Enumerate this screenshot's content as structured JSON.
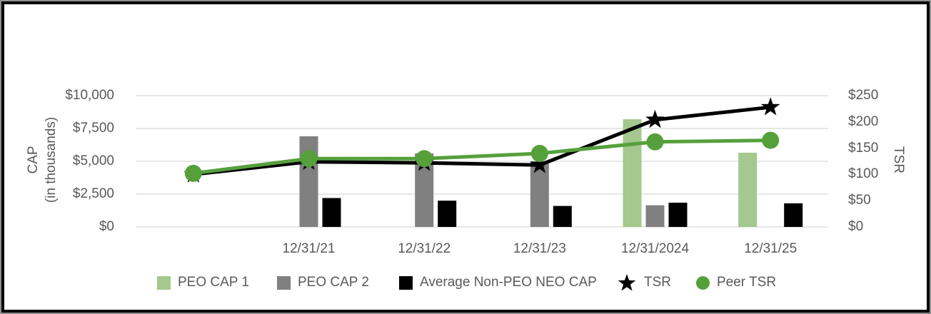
{
  "chart_data": {
    "type": "combo-bar-line",
    "title": "",
    "categories": [
      "",
      "12/31/21",
      "12/31/22",
      "12/31/23",
      "12/31/2024",
      "12/31/25"
    ],
    "bar_series": [
      {
        "name": "PEO CAP 1",
        "color": "#a4c88d",
        "yaxis": "left",
        "values": [
          null,
          null,
          null,
          null,
          8200,
          5650
        ]
      },
      {
        "name": "PEO CAP 2",
        "color": "#808080",
        "yaxis": "left",
        "values": [
          null,
          6900,
          5600,
          5000,
          1650,
          null
        ]
      },
      {
        "name": "Average Non-PEO NEO CAP",
        "color": "#000000",
        "yaxis": "left",
        "values": [
          null,
          2200,
          2000,
          1600,
          1850,
          1800
        ]
      }
    ],
    "line_series": [
      {
        "name": "TSR",
        "color": "#000000",
        "marker": "star",
        "yaxis": "right",
        "values": [
          100,
          124,
          122,
          118,
          204,
          228
        ]
      },
      {
        "name": "Peer TSR",
        "color": "#56a03c",
        "marker": "circle",
        "yaxis": "right",
        "values": [
          102,
          130,
          130,
          140,
          162,
          165
        ]
      }
    ],
    "left_axis": {
      "title": "CAP (in thousands)",
      "range": [
        0,
        10000
      ],
      "tick_step": 2500,
      "tick_labels": [
        "$0",
        "$2,500",
        "$5,000",
        "$7,500",
        "$10,000"
      ]
    },
    "right_axis": {
      "title": "TSR",
      "range": [
        0,
        250
      ],
      "tick_step": 50,
      "tick_labels": [
        "$0",
        "$50",
        "$100",
        "$150",
        "$200",
        "$250"
      ]
    },
    "gridlines": true,
    "gridline_color": "#e7e7e7",
    "legend_position": "bottom"
  },
  "axis_display": {
    "left_title_line1": "CAP",
    "left_title_line2": "(in thousands)",
    "right_title": "TSR",
    "left_ticks_desc": [
      "$10,000",
      "$7,500",
      "$5,000",
      "$2,500",
      "$0"
    ],
    "right_ticks_desc": [
      "$250",
      "$200",
      "$150",
      "$100",
      "$50",
      "$0"
    ],
    "x_labels": [
      "12/31/21",
      "12/31/22",
      "12/31/23",
      "12/31/2024",
      "12/31/25"
    ]
  },
  "legend": {
    "items": [
      {
        "label": "PEO CAP 1",
        "marker": "square",
        "color": "#a4c88d"
      },
      {
        "label": "PEO CAP 2",
        "marker": "square",
        "color": "#808080"
      },
      {
        "label": "Average Non-PEO NEO CAP",
        "marker": "square",
        "color": "#000000"
      },
      {
        "label": "TSR",
        "marker": "star",
        "color": "#000000"
      },
      {
        "label": "Peer TSR",
        "marker": "circle",
        "color": "#56a03c"
      }
    ]
  }
}
